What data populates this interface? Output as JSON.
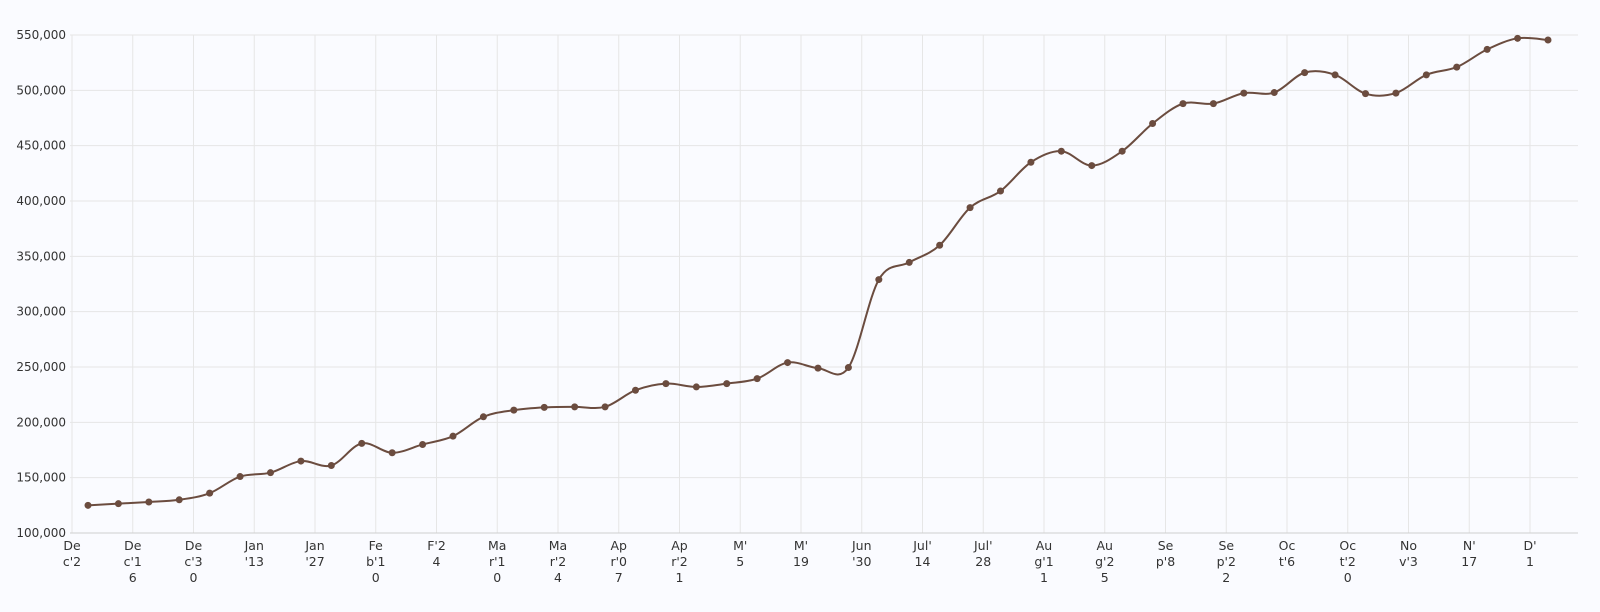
{
  "chart_data": {
    "type": "line",
    "title": "",
    "xlabel": "",
    "ylabel": "",
    "line_color": "#6b4c3f",
    "ylim": [
      100000,
      550000
    ],
    "ytick_values": [
      100000,
      150000,
      200000,
      250000,
      300000,
      350000,
      400000,
      450000,
      500000,
      550000
    ],
    "ytick_labels": [
      "100,000",
      "150,000",
      "200,000",
      "250,000",
      "300,000",
      "350,000",
      "400,000",
      "450,000",
      "500,000",
      "550,000"
    ],
    "xtick_labels": [
      [
        "De",
        "c'2"
      ],
      [
        "De",
        "c'1",
        "6"
      ],
      [
        "De",
        "c'3",
        "0"
      ],
      [
        "Jan",
        "'13"
      ],
      [
        "Jan",
        "'27"
      ],
      [
        "Fe",
        "b'1",
        "0"
      ],
      [
        "F'2",
        "4"
      ],
      [
        "Ma",
        "r'1",
        "0"
      ],
      [
        "Ma",
        "r'2",
        "4"
      ],
      [
        "Ap",
        "r'0",
        "7"
      ],
      [
        "Ap",
        "r'2",
        "1"
      ],
      [
        "M'",
        "5"
      ],
      [
        "M'",
        "19"
      ],
      [
        "Jun",
        "'30"
      ],
      [
        "Jul'",
        "14"
      ],
      [
        "Jul'",
        "28"
      ],
      [
        "Au",
        "g'1",
        "1"
      ],
      [
        "Au",
        "g'2",
        "5"
      ],
      [
        "Se",
        "p'8"
      ],
      [
        "Se",
        "p'2",
        "2"
      ],
      [
        "Oc",
        "t'6"
      ],
      [
        "Oc",
        "t'2",
        "0"
      ],
      [
        "No",
        "v'3"
      ],
      [
        "N'",
        "17"
      ],
      [
        "D'",
        "1"
      ]
    ],
    "grid": true,
    "legend": "none",
    "series": [
      {
        "values": [
          125000,
          126500,
          128000,
          130000,
          136000,
          151000,
          154500,
          165000,
          161000,
          181000,
          172500,
          180000,
          187500,
          205000,
          211000,
          213500,
          214000,
          214000,
          229000,
          235000,
          232000,
          235000,
          239500,
          254000,
          249000,
          249500,
          329000,
          344500,
          360000,
          394000,
          409000,
          435000,
          445000,
          432000,
          445000,
          470000,
          488000,
          488000,
          497500,
          498000,
          516000,
          514000,
          497000,
          497500,
          514000,
          521000,
          537000,
          547000,
          545500
        ]
      }
    ]
  }
}
